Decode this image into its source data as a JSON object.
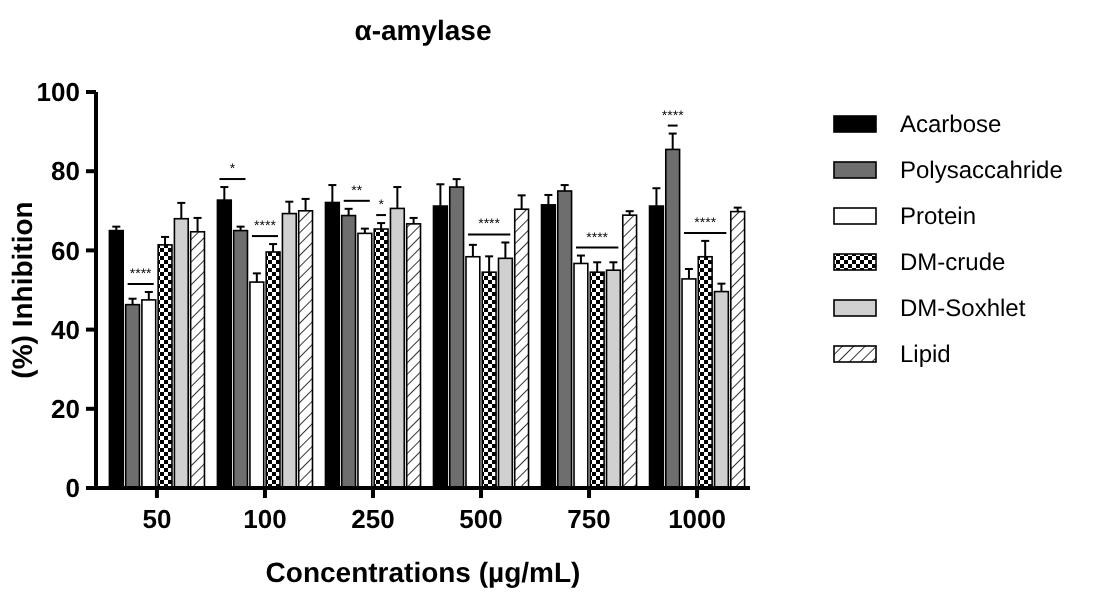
{
  "chart_data": {
    "type": "bar",
    "title": "α-amylase",
    "xlabel": "Concentrations (µg/mL)",
    "ylabel": "(%) Inhibition",
    "categories": [
      "50",
      "100",
      "250",
      "500",
      "750",
      "1000"
    ],
    "ylim": [
      0,
      100
    ],
    "yticks": [
      0,
      20,
      40,
      60,
      80,
      100
    ],
    "grid": false,
    "legend": "right",
    "series": [
      {
        "name": "Acarbose",
        "color": "#000000",
        "values": [
          65,
          72.7,
          72.1,
          71.2,
          71.5,
          71.2
        ],
        "errors": [
          1,
          3.3,
          4.4,
          5.5,
          2.5,
          4.5
        ]
      },
      {
        "name": "Polysaccahride",
        "color": "#6e6e6e",
        "values": [
          46.3,
          65,
          68.8,
          76,
          75,
          85.5
        ],
        "errors": [
          1.5,
          1,
          1.7,
          2,
          1.5,
          4
        ]
      },
      {
        "name": "Protein",
        "color": "#ffffff",
        "values": [
          47.5,
          52,
          64.3,
          58.4,
          56.7,
          52.8
        ],
        "errors": [
          2,
          2.2,
          1.2,
          3,
          2,
          2.5
        ]
      },
      {
        "name": "DM-crude",
        "color": "#000000",
        "values": [
          61.4,
          59.6,
          65.4,
          54.5,
          54.5,
          58.4
        ],
        "errors": [
          2,
          2,
          1.5,
          4,
          2.5,
          4
        ]
      },
      {
        "name": "DM-Soxhlet",
        "color": "#d0d0d0",
        "values": [
          68,
          69.3,
          70.6,
          58,
          55,
          49.6
        ],
        "errors": [
          4,
          3,
          5.4,
          4,
          2,
          2
        ]
      },
      {
        "name": "Lipid",
        "color": "#000000",
        "values": [
          64.7,
          70,
          66.7,
          70.4,
          68.9,
          69.8
        ],
        "errors": [
          3.5,
          3,
          1.5,
          3.5,
          1,
          1
        ]
      }
    ],
    "annotations": [
      "****",
      "*",
      "****",
      "**",
      "*",
      "****",
      "****",
      "****",
      "****"
    ]
  }
}
